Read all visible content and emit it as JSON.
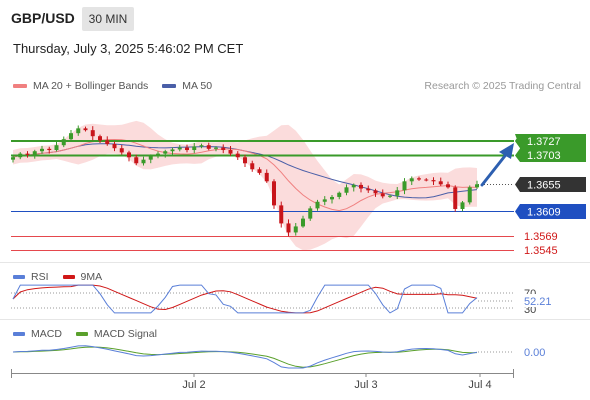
{
  "header": {
    "symbol": "GBP/USD",
    "interval": "30 MIN",
    "datetime": "Thursday, July 3, 2025 5:46:02 PM CET"
  },
  "legend": {
    "ma20_label": "MA 20 + Bollinger Bands",
    "ma50_label": "MA 50",
    "credit": "Research © 2025 Trading Central"
  },
  "colors": {
    "bull": "#3a9a2a",
    "bear": "#c8151b",
    "ma20": "#f08080",
    "ma50": "#4a5fa8",
    "bands_fill": "#fbdcdc",
    "resistance": "#3a9a2a",
    "pivot": "#1f4fc1",
    "support": "#e5484d",
    "arrow": "#2d5fb0",
    "rsi": "#5a7fd8",
    "rsi_ma": "#d01818",
    "macd": "#5a7fd8",
    "macd_signal": "#5aa02c"
  },
  "levels": {
    "resistance2": "1.3727",
    "resistance1": "1.3703",
    "current": "1.3655",
    "pivot": "1.3609",
    "support1": "1.3569",
    "support2": "1.3545"
  },
  "rsi": {
    "label": "RSI",
    "ma_label": "9MA",
    "value": "52.21",
    "tick_70": "70",
    "tick_30": "30"
  },
  "macd": {
    "label": "MACD",
    "signal_label": "MACD Signal",
    "value": "0.00"
  },
  "xaxis": {
    "labels": [
      "Jul 2",
      "Jul 3",
      "Jul 4"
    ]
  },
  "chart_data": [
    {
      "type": "candlestick",
      "title": "GBP/USD",
      "series": [
        {
          "name": "MA 20 + Bollinger Bands"
        },
        {
          "name": "MA 50"
        }
      ],
      "ylim": [
        1.3535,
        1.375
      ],
      "levels": [
        1.3727,
        1.3703,
        1.3655,
        1.3609,
        1.3569,
        1.3545
      ],
      "close": [
        1.37,
        1.3706,
        1.3704,
        1.371,
        1.3714,
        1.3712,
        1.372,
        1.373,
        1.374,
        1.3748,
        1.3745,
        1.3735,
        1.3728,
        1.3722,
        1.3715,
        1.3708,
        1.37,
        1.369,
        1.3696,
        1.3702,
        1.3706,
        1.371,
        1.3713,
        1.3716,
        1.3712,
        1.3718,
        1.372,
        1.3714,
        1.3716,
        1.3712,
        1.3706,
        1.37,
        1.369,
        1.368,
        1.3674,
        1.366,
        1.362,
        1.359,
        1.3575,
        1.3585,
        1.3598,
        1.3615,
        1.3626,
        1.363,
        1.3634,
        1.3641,
        1.365,
        1.3654,
        1.3648,
        1.3645,
        1.364,
        1.3635,
        1.3636,
        1.3645,
        1.366,
        1.3665,
        1.3663,
        1.3662,
        1.366,
        1.3655,
        1.365,
        1.3614,
        1.3625,
        1.365,
        1.3655
      ]
    },
    {
      "type": "line",
      "title": "RSI",
      "series": [
        {
          "name": "RSI"
        },
        {
          "name": "9MA"
        }
      ],
      "ylim": [
        20,
        80
      ],
      "last": 52.21
    },
    {
      "type": "line",
      "title": "MACD",
      "series": [
        {
          "name": "MACD"
        },
        {
          "name": "MACD Signal"
        }
      ],
      "last": 0.0
    }
  ]
}
